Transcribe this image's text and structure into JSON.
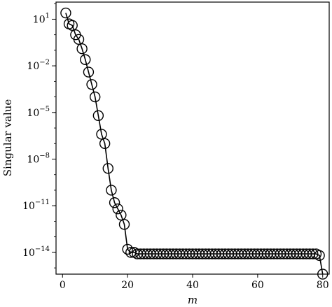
{
  "chart_data": {
    "type": "scatter",
    "title": "",
    "xlabel": "m",
    "ylabel": "Singular value",
    "yscale": "log",
    "xlim": [
      -2,
      82
    ],
    "ylim_exponent": [
      -15.4,
      2.1
    ],
    "grid": false,
    "line_color": "#000000",
    "marker": "open-circle",
    "x_ticks": [
      0,
      20,
      40,
      60,
      80
    ],
    "x_tick_labels": [
      "0",
      "20",
      "40",
      "60",
      "80"
    ],
    "y_ticks_exponent": [
      1,
      -2,
      -5,
      -8,
      -11,
      -14
    ],
    "y_tick_labels": [
      {
        "base": "10",
        "exp": "1"
      },
      {
        "base": "10",
        "exp": "−2"
      },
      {
        "base": "10",
        "exp": "−5"
      },
      {
        "base": "10",
        "exp": "−8"
      },
      {
        "base": "10",
        "exp": "−11"
      },
      {
        "base": "10",
        "exp": "−14"
      }
    ],
    "series": [
      {
        "x": [
          1,
          2,
          3,
          4,
          5,
          6,
          7,
          8,
          9,
          10,
          11,
          12,
          13,
          14,
          15,
          16,
          17,
          18,
          19,
          20,
          21,
          22,
          23,
          24,
          25,
          26,
          27,
          28,
          29,
          30,
          31,
          32,
          33,
          34,
          35,
          36,
          37,
          38,
          39,
          40,
          41,
          42,
          43,
          44,
          45,
          46,
          47,
          48,
          49,
          50,
          51,
          52,
          53,
          54,
          55,
          56,
          57,
          58,
          59,
          60,
          61,
          62,
          63,
          64,
          65,
          66,
          67,
          68,
          69,
          70,
          71,
          72,
          73,
          74,
          75,
          76,
          77,
          78,
          79,
          80
        ],
        "log10_y": [
          1.4,
          0.7,
          0.6,
          0.0,
          -0.3,
          -0.9,
          -1.6,
          -2.4,
          -3.2,
          -4.0,
          -5.2,
          -6.4,
          -7.0,
          -8.6,
          -10.0,
          -10.8,
          -11.2,
          -11.6,
          -12.2,
          -13.8,
          -14.0,
          -14.0,
          -14.1,
          -14.1,
          -14.1,
          -14.1,
          -14.1,
          -14.1,
          -14.1,
          -14.1,
          -14.1,
          -14.1,
          -14.1,
          -14.1,
          -14.1,
          -14.1,
          -14.1,
          -14.1,
          -14.1,
          -14.1,
          -14.1,
          -14.1,
          -14.1,
          -14.1,
          -14.1,
          -14.1,
          -14.1,
          -14.1,
          -14.1,
          -14.1,
          -14.1,
          -14.1,
          -14.1,
          -14.1,
          -14.1,
          -14.1,
          -14.1,
          -14.1,
          -14.1,
          -14.1,
          -14.1,
          -14.1,
          -14.1,
          -14.1,
          -14.1,
          -14.1,
          -14.1,
          -14.1,
          -14.1,
          -14.1,
          -14.1,
          -14.1,
          -14.1,
          -14.1,
          -14.1,
          -14.1,
          -14.1,
          -14.1,
          -14.2,
          -15.4
        ]
      }
    ]
  }
}
